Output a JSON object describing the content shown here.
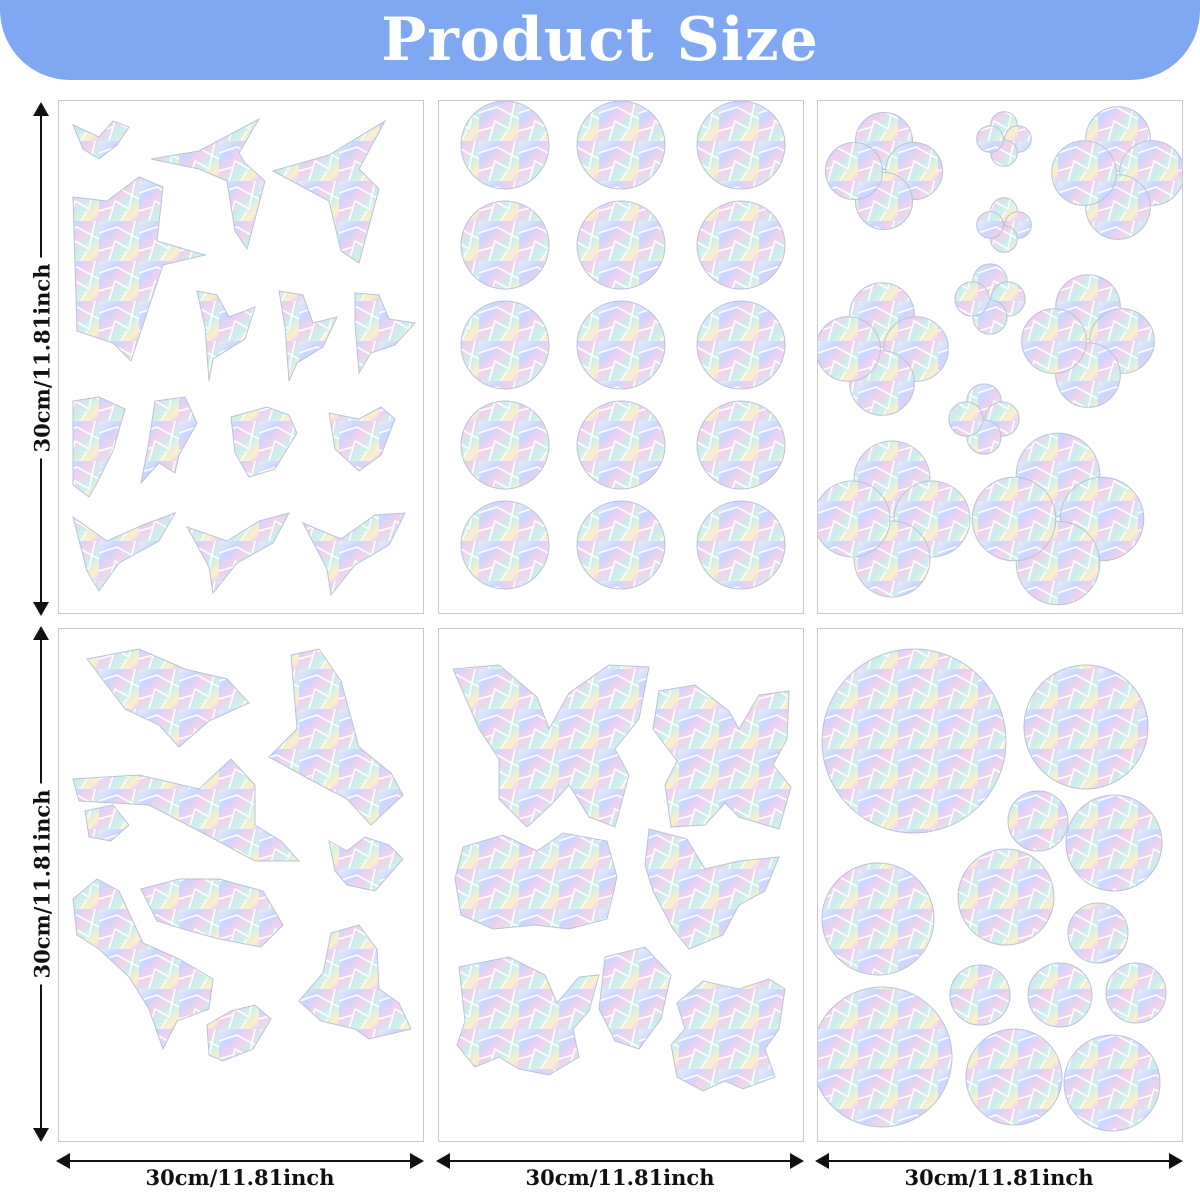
{
  "header": {
    "title": "Product Size",
    "background_color": "#7fa7f2",
    "text_color": "#ffffff"
  },
  "dimensions": {
    "height_label": "30cm/11.81inch",
    "width_label": "30cm/11.81inch"
  },
  "sheets": [
    {
      "motif": "birds-and-hummingbirds"
    },
    {
      "motif": "circles-grid"
    },
    {
      "motif": "clovers"
    },
    {
      "motif": "doves-and-birds"
    },
    {
      "motif": "butterflies"
    },
    {
      "motif": "mixed-circles"
    }
  ],
  "colors": {
    "sticker_base": "#e9eef8",
    "rainbow": [
      "#f6c7e8",
      "#c8d6ff",
      "#bfeff0",
      "#fff0c2",
      "#e0ccff"
    ],
    "sticker_lines": "#ffffff"
  }
}
